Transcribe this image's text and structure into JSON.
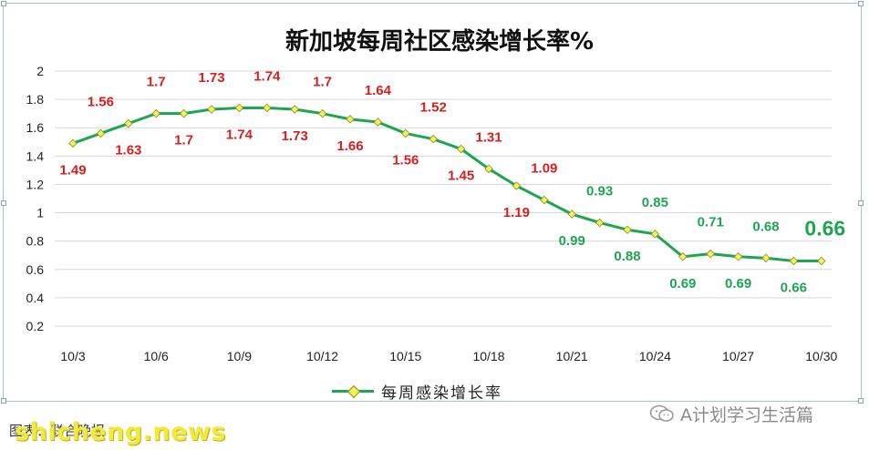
{
  "chart_data": {
    "type": "line",
    "title": "新加坡每周社区感染增长率%",
    "series": [
      {
        "name": "每周感染增长率",
        "values": [
          1.49,
          1.56,
          1.63,
          1.7,
          1.7,
          1.73,
          1.74,
          1.74,
          1.73,
          1.7,
          1.66,
          1.64,
          1.56,
          1.52,
          1.45,
          1.31,
          1.19,
          1.09,
          0.99,
          0.93,
          0.88,
          0.85,
          0.69,
          0.71,
          0.69,
          0.68,
          0.66,
          0.66
        ]
      }
    ],
    "x_ticks": [
      "10/3",
      "10/6",
      "10/9",
      "10/12",
      "10/15",
      "10/18",
      "10/21",
      "10/24",
      "10/27",
      "10/30"
    ],
    "y_ticks": [
      "2",
      "1.8",
      "1.6",
      "1.4",
      "1.2",
      "1",
      "0.8",
      "0.6",
      "0.4",
      "0.2"
    ],
    "ylim": [
      0.2,
      2
    ],
    "grid": true,
    "legend_position": "bottom",
    "colors": {
      "line": "#1fa552",
      "marker_fill": "#f2f25a",
      "label_red": "#d42020",
      "label_green": "#1fa552",
      "grid": "#d9d9d9"
    }
  },
  "legend_label": "每周感染增长率",
  "wechat_label": "A计划学习生活篇",
  "source_text": "图表：联合晚报",
  "watermark_text": "shicheng.news"
}
